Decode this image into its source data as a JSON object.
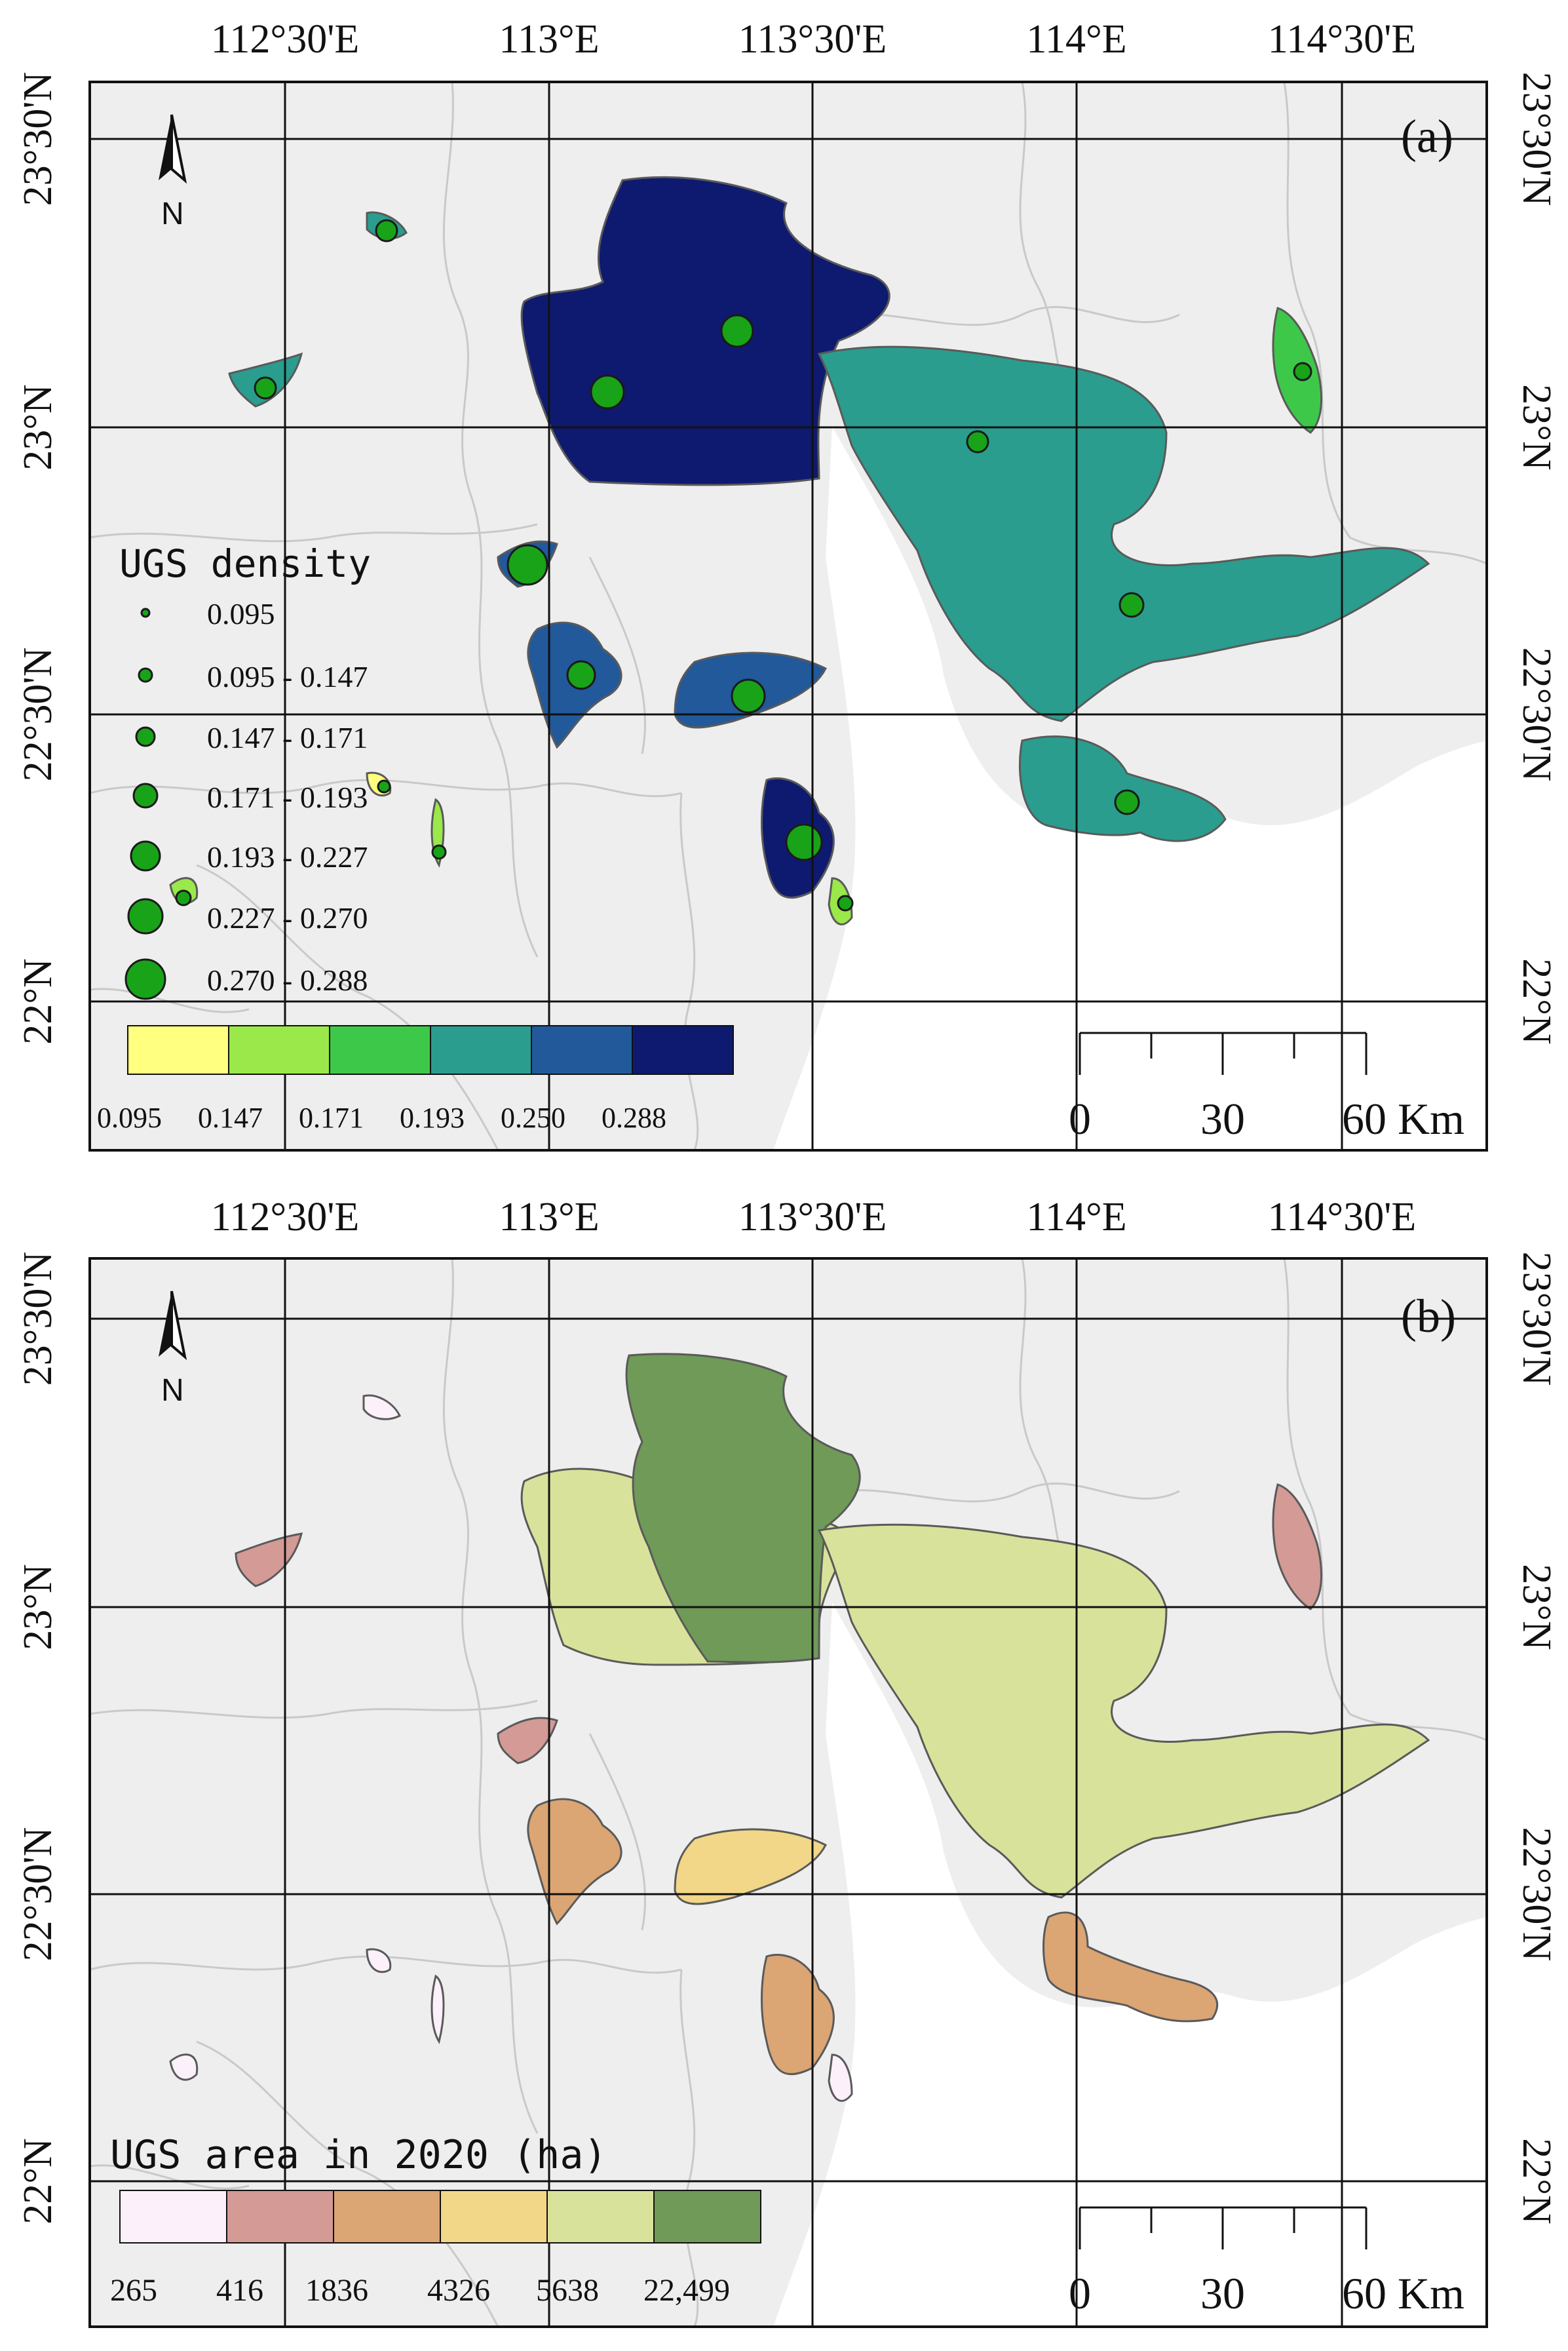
{
  "axes": {
    "lon_labels": [
      "112°30'E",
      "113°E",
      "113°30'E",
      "114°E",
      "114°30'E"
    ],
    "lat_labels": [
      "23°30'N",
      "23°N",
      "22°30'N",
      "22°N"
    ]
  },
  "north_arrow": {
    "label": "N"
  },
  "scale_bar": {
    "labels": [
      "0",
      "30",
      "60 Km"
    ]
  },
  "colors": {
    "land": "#eeeeee",
    "outside": "#ffffff",
    "boundary": "#c9c9c9",
    "water_ramp_a": [
      "#ffff80",
      "#9ae84a",
      "#3ec84a",
      "#2a9d8f",
      "#21599b",
      "#0e1a6f"
    ],
    "point_fill": "#18a318",
    "ramp_b": [
      "#fcf0fb",
      "#d49a96",
      "#dba574",
      "#f1d787",
      "#d9e29a",
      "#6f9a58"
    ]
  },
  "panel_a": {
    "tag": "(a)",
    "legend_title": "UGS density",
    "classes": [
      "0.095",
      "0.095 - 0.147",
      "0.147 - 0.171",
      "0.171 - 0.193",
      "0.193 - 0.227",
      "0.227 - 0.270",
      "0.270 - 0.288"
    ],
    "ramp_labels": [
      "0.095",
      "0.147",
      "0.171",
      "0.193",
      "0.250",
      "0.288"
    ]
  },
  "panel_b": {
    "tag": "(b)",
    "legend_title": "UGS area in 2020 (ha)",
    "ramp_labels": [
      "265",
      "416",
      "1836",
      "4326",
      "5638",
      "22,499"
    ]
  }
}
